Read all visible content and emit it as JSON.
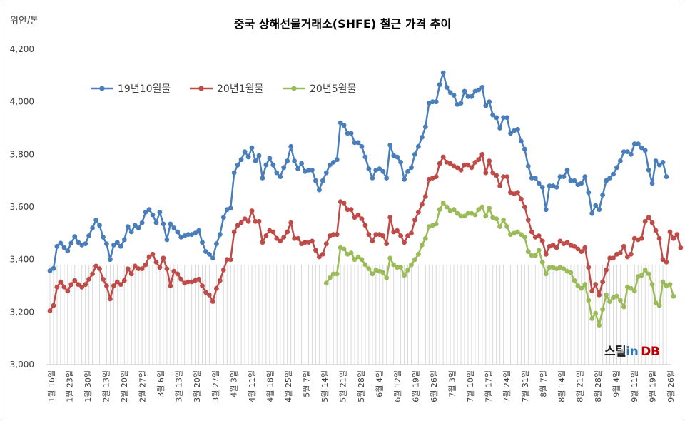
{
  "chart_data": {
    "type": "line",
    "title": "중국 상해선물거래소(SHFE) 철근 가격 추이",
    "ylabel": "위안/톤",
    "ylim": [
      3000,
      4200
    ],
    "yticks": [
      "3,000",
      "3,200",
      "3,400",
      "3,600",
      "3,800",
      "4,000",
      "4,200"
    ],
    "xtick_labels": [
      "1월 16일",
      "1월 23일",
      "1월 30일",
      "2월 13일",
      "2월 20일",
      "2월 27일",
      "3월 6일",
      "3월 13일",
      "3월 20일",
      "3월 27일",
      "4월 3일",
      "4월 11일",
      "4월 18일",
      "4월 25일",
      "5월 7일",
      "5월 14일",
      "5월 21일",
      "5월 28일",
      "6월 4일",
      "6월 12일",
      "6월 19일",
      "6월 26일",
      "7월 3일",
      "7월 10일",
      "7월 17일",
      "7월 24일",
      "7월 31일",
      "8월 7일",
      "8월 14일",
      "8월 21일",
      "8월 28일",
      "9월 4일",
      "9월 11일",
      "9월 19일",
      "9월 26일"
    ],
    "grid": "vertical-lines",
    "legend_position": "top-left",
    "series": [
      {
        "name": "19년10월물",
        "color": "#4a7ebb",
        "values": [
          3357,
          3366,
          3450,
          3462,
          3445,
          3433,
          3462,
          3487,
          3465,
          3455,
          3460,
          3490,
          3520,
          3550,
          3530,
          3485,
          3460,
          3400,
          3455,
          3465,
          3450,
          3475,
          3525,
          3505,
          3530,
          3520,
          3540,
          3580,
          3590,
          3570,
          3540,
          3580,
          3535,
          3475,
          3535,
          3520,
          3505,
          3485,
          3490,
          3495,
          3495,
          3500,
          3510,
          3465,
          3430,
          3420,
          3405,
          3460,
          3495,
          3560,
          3590,
          3595,
          3730,
          3760,
          3780,
          3810,
          3790,
          3825,
          3775,
          3795,
          3710,
          3760,
          3785,
          3760,
          3730,
          3715,
          3750,
          3775,
          3830,
          3775,
          3745,
          3765,
          3735,
          3740,
          3740,
          3700,
          3665,
          3700,
          3730,
          3760,
          3770,
          3780,
          3920,
          3910,
          3880,
          3880,
          3845,
          3845,
          3830,
          3790,
          3745,
          3710,
          3740,
          3745,
          3735,
          3710,
          3835,
          3795,
          3790,
          3770,
          3705,
          3735,
          3750,
          3800,
          3830,
          3865,
          3905,
          3995,
          4000,
          4000,
          4065,
          4110,
          4055,
          4035,
          4025,
          3990,
          3995,
          4040,
          4020,
          4020,
          4040,
          4045,
          4055,
          3985,
          4000,
          3950,
          3940,
          3900,
          3940,
          3940,
          3880,
          3890,
          3895,
          3850,
          3820,
          3755,
          3710,
          3710,
          3690,
          3675,
          3590,
          3680,
          3680,
          3675,
          3715,
          3715,
          3740,
          3700,
          3700,
          3685,
          3690,
          3715,
          3655,
          3575,
          3605,
          3590,
          3645,
          3700,
          3710,
          3725,
          3750,
          3775,
          3810,
          3810,
          3800,
          3840,
          3840,
          3825,
          3815,
          3740,
          3690,
          3775,
          3760,
          3770,
          3715
        ]
      },
      {
        "name": "20년1월물",
        "color": "#be4b48",
        "values": [
          3205,
          3225,
          3295,
          3315,
          3295,
          3280,
          3305,
          3320,
          3305,
          3295,
          3305,
          3325,
          3345,
          3375,
          3365,
          3325,
          3300,
          3250,
          3300,
          3315,
          3305,
          3320,
          3365,
          3345,
          3375,
          3365,
          3365,
          3380,
          3410,
          3420,
          3390,
          3370,
          3405,
          3365,
          3300,
          3355,
          3345,
          3325,
          3310,
          3315,
          3315,
          3320,
          3325,
          3300,
          3275,
          3265,
          3240,
          3290,
          3320,
          3360,
          3400,
          3400,
          3505,
          3530,
          3540,
          3555,
          3545,
          3585,
          3545,
          3545,
          3465,
          3490,
          3510,
          3505,
          3480,
          3470,
          3485,
          3505,
          3540,
          3480,
          3480,
          3460,
          3465,
          3465,
          3470,
          3435,
          3410,
          3420,
          3460,
          3490,
          3495,
          3495,
          3620,
          3615,
          3590,
          3590,
          3560,
          3570,
          3555,
          3530,
          3495,
          3470,
          3495,
          3495,
          3490,
          3460,
          3560,
          3505,
          3510,
          3490,
          3465,
          3490,
          3500,
          3550,
          3580,
          3610,
          3640,
          3705,
          3710,
          3715,
          3765,
          3790,
          3770,
          3765,
          3755,
          3750,
          3740,
          3760,
          3760,
          3750,
          3770,
          3780,
          3800,
          3730,
          3775,
          3730,
          3720,
          3680,
          3715,
          3715,
          3655,
          3650,
          3655,
          3630,
          3600,
          3550,
          3505,
          3485,
          3490,
          3470,
          3420,
          3450,
          3455,
          3445,
          3470,
          3460,
          3465,
          3455,
          3450,
          3440,
          3430,
          3445,
          3370,
          3280,
          3305,
          3265,
          3315,
          3360,
          3405,
          3405,
          3420,
          3425,
          3450,
          3410,
          3420,
          3480,
          3475,
          3480,
          3545,
          3560,
          3540,
          3510,
          3480,
          3400,
          3390,
          3505,
          3480,
          3495,
          3445
        ]
      },
      {
        "name": "20년5월물",
        "color": "#9bbb59",
        "values": [
          null,
          null,
          null,
          null,
          null,
          null,
          null,
          null,
          null,
          null,
          null,
          null,
          null,
          null,
          null,
          null,
          null,
          null,
          null,
          null,
          null,
          null,
          null,
          null,
          null,
          null,
          null,
          null,
          null,
          null,
          null,
          null,
          null,
          null,
          null,
          null,
          null,
          null,
          null,
          null,
          null,
          null,
          null,
          null,
          null,
          null,
          null,
          null,
          null,
          null,
          null,
          null,
          null,
          null,
          null,
          null,
          null,
          null,
          null,
          null,
          null,
          null,
          null,
          null,
          null,
          null,
          null,
          null,
          null,
          null,
          null,
          null,
          null,
          null,
          null,
          null,
          null,
          null,
          3310,
          3330,
          3345,
          3345,
          3445,
          3440,
          3420,
          3425,
          3400,
          3410,
          3400,
          3380,
          3365,
          3345,
          3360,
          3355,
          3350,
          3330,
          3405,
          3380,
          3370,
          3370,
          3340,
          3360,
          3380,
          3400,
          3420,
          3455,
          3480,
          3525,
          3530,
          3535,
          3590,
          3615,
          3600,
          3585,
          3590,
          3575,
          3565,
          3565,
          3575,
          3575,
          3570,
          3590,
          3600,
          3565,
          3595,
          3560,
          3555,
          3525,
          3550,
          3525,
          3495,
          3500,
          3505,
          3495,
          3485,
          3430,
          3415,
          3415,
          3435,
          3390,
          3345,
          3370,
          3370,
          3365,
          3370,
          3365,
          3355,
          3350,
          3320,
          3300,
          3290,
          3305,
          3245,
          3175,
          3195,
          3150,
          3210,
          3265,
          3240,
          3255,
          3260,
          3245,
          3220,
          3295,
          3290,
          3280,
          3335,
          3340,
          3360,
          3345,
          3305,
          3235,
          3225,
          3315,
          3300,
          3305,
          3260
        ]
      }
    ]
  },
  "logo": {
    "part1": "스틸",
    "part2": "in",
    "part3": "DB"
  }
}
